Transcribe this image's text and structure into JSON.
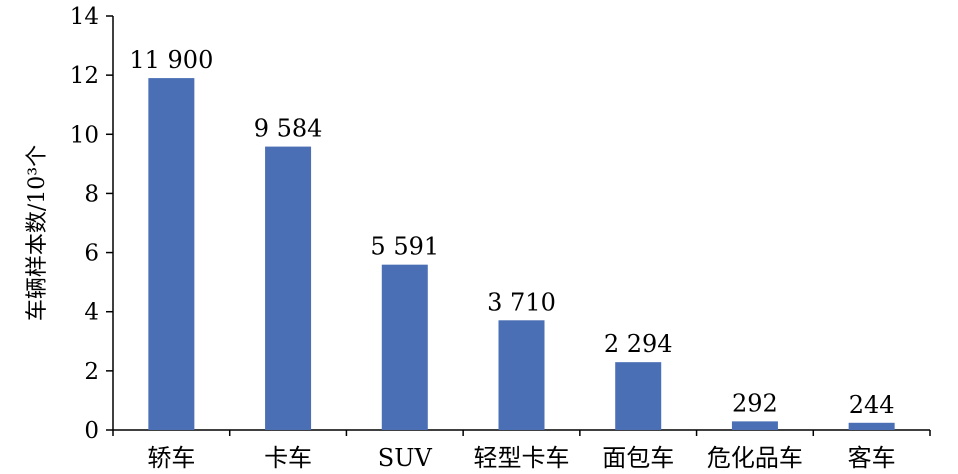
{
  "chart_data": {
    "type": "bar",
    "categories": [
      "轿车",
      "卡车",
      "SUV",
      "轻型卡车",
      "面包车",
      "危化品车",
      "客车"
    ],
    "values": [
      11.9,
      9.584,
      5.591,
      3.71,
      2.294,
      0.292,
      0.244
    ],
    "data_labels": [
      "11 900",
      "9 584",
      "5 591",
      "3 710",
      "2 294",
      "292",
      "244"
    ],
    "ylabel": "车辆样本数/10³个",
    "xlabel": "",
    "title": "",
    "ylim": [
      0,
      14
    ],
    "yticks": [
      0,
      2,
      4,
      6,
      8,
      10,
      12,
      14
    ],
    "bar_color": "#4a6fb5",
    "grid": false,
    "legend": "none"
  }
}
